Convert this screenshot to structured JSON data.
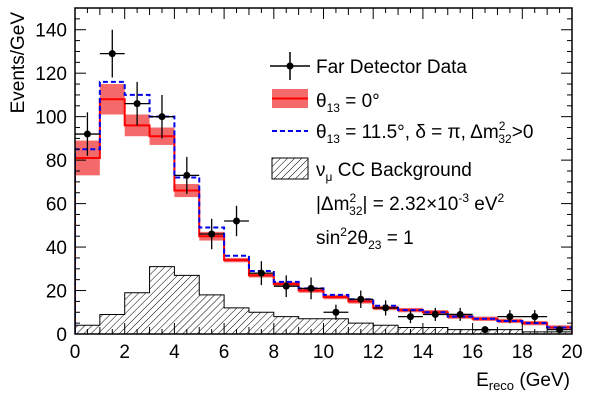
{
  "chart_data": {
    "type": "histogram",
    "xlabel": {
      "main": "E",
      "sub": "reco",
      "unit": " (GeV)"
    },
    "ylabel": "Events/GeV",
    "xlim": [
      0,
      20
    ],
    "ylim": [
      0,
      150
    ],
    "x_ticks": [
      0,
      2,
      4,
      6,
      8,
      10,
      12,
      14,
      16,
      18,
      20
    ],
    "y_ticks": [
      0,
      20,
      40,
      60,
      80,
      100,
      120,
      140
    ],
    "bin_edges": [
      0,
      1,
      2,
      3,
      4,
      5,
      6,
      7,
      8,
      9,
      10,
      11,
      12,
      13,
      14,
      15,
      16,
      17,
      18,
      19,
      20
    ],
    "series": [
      {
        "name": "θ13 = 0°",
        "kind": "band",
        "color": "#ff0000",
        "band_color": "#f46a6a",
        "values": [
          81,
          108,
          96,
          91,
          66,
          45,
          34,
          27,
          23,
          20,
          17,
          15,
          12,
          11,
          10,
          8,
          7,
          6,
          5,
          3
        ],
        "band_lo": [
          73,
          101,
          91,
          87,
          63,
          43,
          33,
          26,
          22,
          19,
          16,
          14,
          11,
          10,
          9,
          7,
          6,
          5,
          4,
          2
        ],
        "band_hi": [
          89,
          115,
          101,
          95,
          69,
          47,
          35,
          28,
          24,
          21,
          18,
          16,
          13,
          12,
          11,
          9,
          8,
          7,
          6,
          4
        ]
      },
      {
        "name": "θ13 = 11.5°, δ = π, Δm²32>0",
        "kind": "step-dashed",
        "color": "#0000ee",
        "values": [
          85,
          116,
          110,
          100,
          72,
          49,
          36,
          29,
          24,
          21,
          18,
          16,
          13,
          11,
          10,
          8,
          7,
          6,
          5,
          3
        ]
      },
      {
        "name": "νμ CC Background",
        "kind": "hatched",
        "color": "#000000",
        "values": [
          4,
          9,
          19,
          31,
          27,
          18,
          12,
          10,
          8,
          7,
          7,
          5,
          4,
          3,
          3,
          2,
          2,
          2,
          1,
          1
        ]
      },
      {
        "name": "Far Detector Data",
        "kind": "points",
        "color": "#000000",
        "x": [
          0.5,
          1.5,
          2.5,
          3.5,
          4.5,
          5.5,
          6.5,
          7.5,
          8.5,
          9.5,
          10.5,
          11.5,
          12.5,
          13.5,
          14.5,
          15.5,
          16.5,
          17.5,
          18.5,
          19.5
        ],
        "y": [
          92,
          129,
          106,
          100,
          73,
          46,
          52,
          28,
          22,
          21,
          10,
          16,
          12,
          8,
          9,
          9,
          2,
          8,
          8,
          2
        ],
        "yerr": [
          10,
          11,
          10,
          10,
          8.5,
          7,
          7,
          5.5,
          5,
          5,
          3.5,
          4,
          3.5,
          3,
          3,
          3,
          1.5,
          3,
          3,
          1.5
        ]
      }
    ],
    "legend": {
      "entries": [
        "Far Detector Data",
        "θ13 = 0°",
        "θ13 = 11.5°,  δ = π, Δm232>0",
        "νμ CC Background"
      ],
      "notes": [
        "|Δm232| = 2.32×10-3 eV2",
        "sin22θ23 = 1"
      ],
      "placement": "top-right"
    },
    "grid": false
  }
}
